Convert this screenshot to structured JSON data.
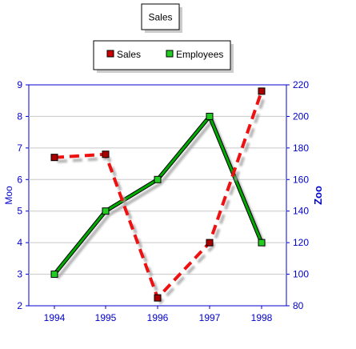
{
  "chart_data": {
    "type": "line",
    "title": "Sales",
    "categories": [
      "1994",
      "1995",
      "1996",
      "1997",
      "1998"
    ],
    "y_left": {
      "label": "Moo",
      "range": [
        2,
        9
      ],
      "ticks": [
        "2",
        "3",
        "4",
        "5",
        "6",
        "7",
        "8",
        "9"
      ]
    },
    "y_right": {
      "label": "Zoo",
      "range": [
        80,
        220
      ],
      "ticks": [
        "80",
        "100",
        "120",
        "140",
        "160",
        "180",
        "200",
        "220"
      ]
    },
    "grid": true,
    "legend_placement": "top-center",
    "series": [
      {
        "name": "Sales",
        "axis": "left",
        "values": [
          6.7,
          6.8,
          2.25,
          4.0,
          8.8
        ],
        "color": "#ee1111",
        "marker_color": "#aa0000",
        "dashed": true
      },
      {
        "name": "Employees",
        "axis": "right",
        "values": [
          100,
          140,
          160,
          200,
          120
        ],
        "color": "#00aa00",
        "marker_color": "#22cc22",
        "dashed": false
      }
    ]
  },
  "colors": {
    "axis": "#0000cc",
    "grid": "#c8c8c8"
  }
}
